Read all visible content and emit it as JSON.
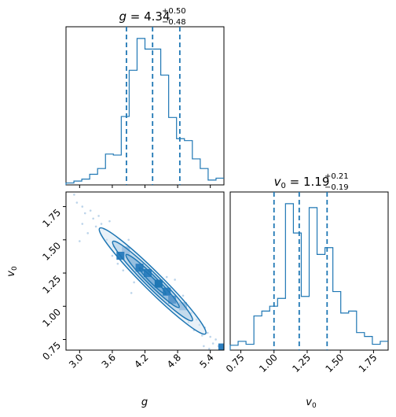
{
  "colors": {
    "accent": "#1f77b4",
    "contour_fill_1": "#d6e5f2",
    "contour_fill_2": "#a6c8e4",
    "contour_fill_3": "#6fa6d3",
    "scatter": "#bcd4ea"
  },
  "chart_data": [
    {
      "type": "histogram",
      "panel": "g-marginal",
      "title": {
        "symbol": "g",
        "median": "4.34",
        "plus": "+0.50",
        "minus": "−0.48"
      },
      "xlim": [
        2.75,
        5.65
      ],
      "bin_edges": [
        2.75,
        2.895,
        3.04,
        3.185,
        3.33,
        3.475,
        3.62,
        3.765,
        3.91,
        4.055,
        4.2,
        4.345,
        4.49,
        4.635,
        4.78,
        4.925,
        5.07,
        5.215,
        5.36,
        5.505,
        5.65
      ],
      "counts": [
        2,
        4,
        6,
        11,
        17,
        32,
        31,
        71,
        119,
        152,
        141,
        141,
        114,
        70,
        48,
        46,
        27,
        17,
        5,
        7
      ],
      "quantiles": [
        3.86,
        4.34,
        4.84
      ]
    },
    {
      "type": "histogram",
      "panel": "v0-marginal",
      "title": {
        "symbol": "v",
        "sub": "0",
        "median": "1.19",
        "plus": "+0.21",
        "minus": "−0.19"
      },
      "xlim": [
        0.67,
        1.86
      ],
      "x_ticks": [
        "0.75",
        "1.00",
        "1.25",
        "1.50",
        "1.75"
      ],
      "x_tick_values": [
        0.75,
        1.0,
        1.25,
        1.5,
        1.75
      ],
      "xlabel": {
        "symbol": "v",
        "sub": "0"
      },
      "bin_edges": [
        0.67,
        0.7295,
        0.789,
        0.8485,
        0.908,
        0.9675,
        1.027,
        1.0865,
        1.146,
        1.2055,
        1.265,
        1.3245,
        1.384,
        1.4435,
        1.503,
        1.5625,
        1.622,
        1.6815,
        1.741,
        1.8005,
        1.86
      ],
      "counts": [
        5,
        9,
        6,
        35,
        40,
        45,
        53,
        150,
        120,
        55,
        146,
        98,
        105,
        60,
        38,
        40,
        18,
        14,
        6,
        9
      ],
      "quantiles": [
        1.0,
        1.19,
        1.4
      ]
    },
    {
      "type": "contour",
      "panel": "g-v0-joint",
      "xlim": [
        2.75,
        5.65
      ],
      "ylim": [
        0.67,
        1.86
      ],
      "x_ticks": [
        "3.0",
        "3.6",
        "4.2",
        "4.8",
        "5.4"
      ],
      "x_tick_values": [
        3.0,
        3.6,
        4.2,
        4.8,
        5.4
      ],
      "y_ticks": [
        "0.75",
        "1.00",
        "1.25",
        "1.50",
        "1.75"
      ],
      "y_tick_values": [
        0.75,
        1.0,
        1.25,
        1.5,
        1.75
      ],
      "xlabel": {
        "symbol": "g"
      },
      "ylabel": {
        "symbol": "v",
        "sub": "0"
      },
      "center": [
        4.34,
        1.19
      ],
      "sigma": [
        0.49,
        0.2
      ],
      "correlation": -0.97,
      "contour_levels_sigma": [
        0.5,
        1.0,
        1.5,
        2.0
      ],
      "dense_cells": [
        {
          "x": 4.1,
          "y": 1.29,
          "level": 3
        },
        {
          "x": 4.25,
          "y": 1.25,
          "level": 3
        },
        {
          "x": 4.45,
          "y": 1.17,
          "level": 4
        },
        {
          "x": 4.6,
          "y": 1.11,
          "level": 3
        },
        {
          "x": 4.7,
          "y": 1.05,
          "level": 2
        },
        {
          "x": 4.9,
          "y": 1.0,
          "level": 1
        },
        {
          "x": 3.85,
          "y": 1.42,
          "level": 1
        },
        {
          "x": 3.75,
          "y": 1.38,
          "level": 3
        },
        {
          "x": 5.62,
          "y": 0.69,
          "level": 3
        }
      ],
      "scatter_points": [
        [
          2.9,
          1.84
        ],
        [
          2.95,
          1.78
        ],
        [
          3.05,
          1.75
        ],
        [
          3.1,
          1.7
        ],
        [
          3.2,
          1.72
        ],
        [
          3.25,
          1.66
        ],
        [
          3.3,
          1.6
        ],
        [
          3.05,
          1.62
        ],
        [
          3.15,
          1.55
        ],
        [
          3.35,
          1.68
        ],
        [
          3.4,
          1.62
        ],
        [
          3.45,
          1.58
        ],
        [
          3.5,
          1.5
        ],
        [
          3.55,
          1.64
        ],
        [
          3.0,
          1.49
        ],
        [
          3.6,
          1.38
        ],
        [
          3.7,
          1.32
        ],
        [
          3.62,
          1.45
        ],
        [
          4.95,
          0.98
        ],
        [
          5.05,
          0.95
        ],
        [
          5.15,
          0.9
        ],
        [
          5.2,
          0.86
        ],
        [
          5.3,
          0.84
        ],
        [
          5.35,
          0.8
        ],
        [
          5.4,
          0.77
        ],
        [
          5.5,
          0.75
        ],
        [
          5.45,
          0.72
        ],
        [
          5.25,
          0.78
        ],
        [
          5.1,
          0.82
        ],
        [
          5.55,
          0.7
        ],
        [
          5.28,
          0.7
        ],
        [
          5.38,
          0.68
        ],
        [
          4.6,
          1.22
        ],
        [
          4.0,
          1.18
        ],
        [
          4.75,
          1.2
        ],
        [
          3.9,
          1.5
        ],
        [
          3.8,
          1.27
        ],
        [
          5.0,
          0.88
        ],
        [
          4.9,
          1.08
        ],
        [
          3.95,
          1.1
        ]
      ]
    }
  ]
}
